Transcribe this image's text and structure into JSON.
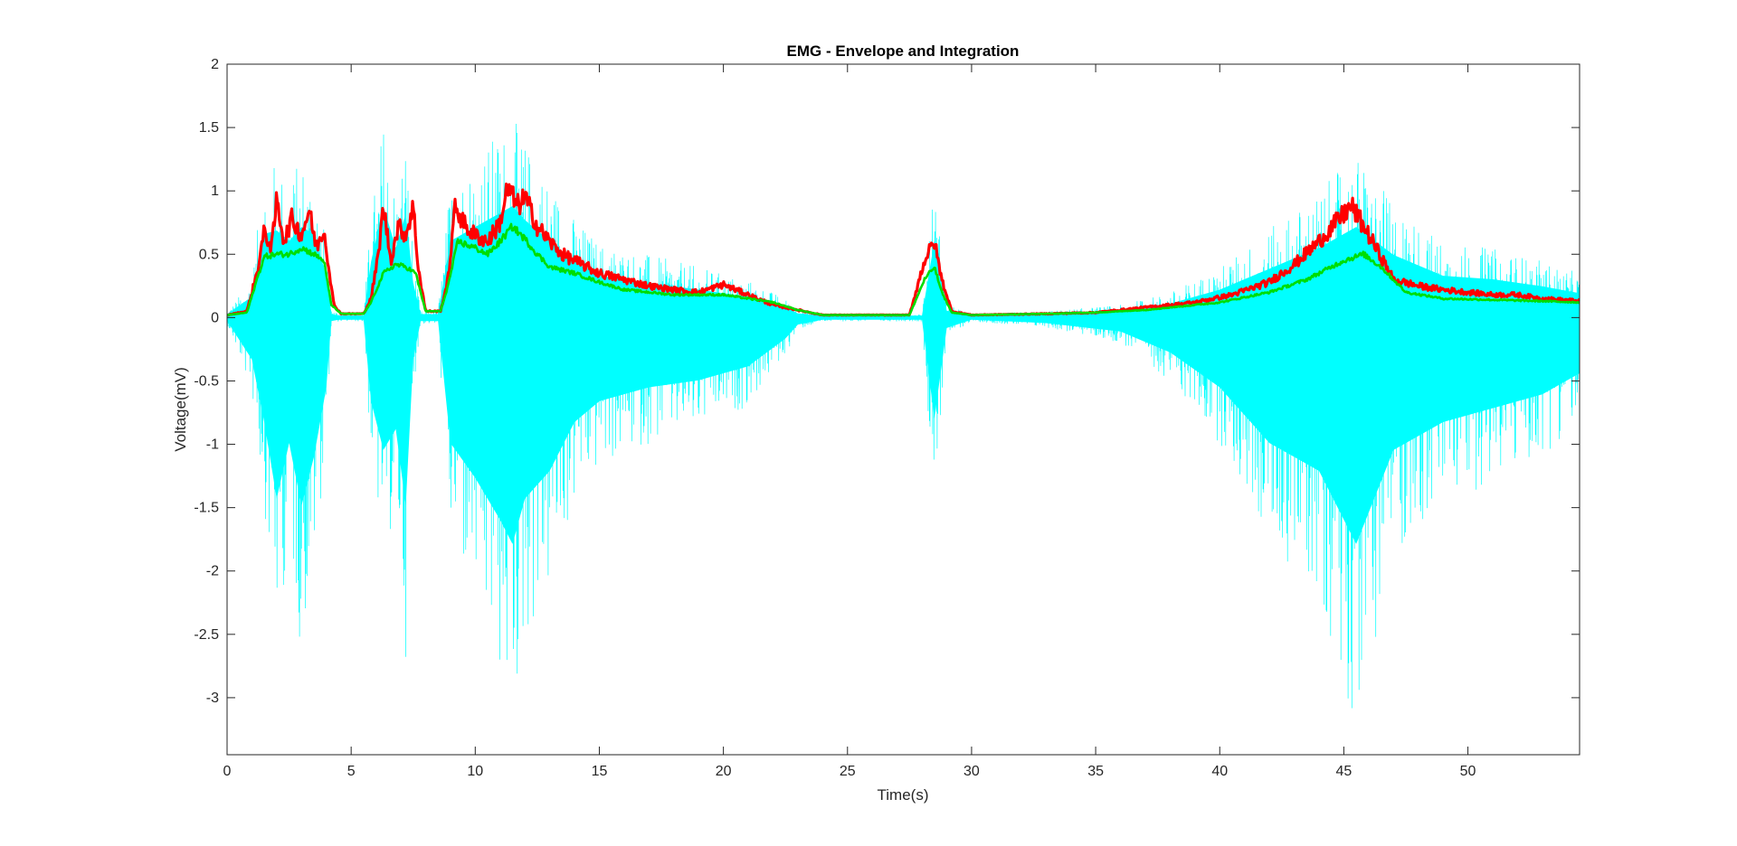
{
  "chart_data": {
    "type": "line",
    "title": "EMG - Envelope and Integration",
    "xlabel": "Time(s)",
    "ylabel": "Voltage(mV)",
    "xlim": [
      0,
      54.5
    ],
    "ylim": [
      -3.45,
      2
    ],
    "xticks": [
      0,
      5,
      10,
      15,
      20,
      25,
      30,
      35,
      40,
      45,
      50
    ],
    "xtick_labels": [
      "0",
      "5",
      "10",
      "15",
      "20",
      "25",
      "30",
      "35",
      "40",
      "45",
      "50"
    ],
    "yticks": [
      2,
      1.5,
      1,
      0.5,
      0,
      -0.5,
      -1,
      -1.5,
      -2,
      -2.5,
      -3
    ],
    "ytick_labels": [
      "2",
      "1.5",
      "1",
      "0.5",
      "0",
      "-0.5",
      "-1",
      "-1.5",
      "-2",
      "-2.5",
      "-3"
    ],
    "grid": false,
    "legend": "none",
    "series": [
      {
        "role": "raw-emg",
        "color": "#00ffff",
        "x": [
          0.0,
          1.0,
          1.5,
          2.0,
          2.5,
          3.0,
          3.5,
          4.0,
          4.2,
          4.5,
          5.5,
          5.8,
          6.3,
          6.8,
          7.2,
          7.5,
          7.8,
          8.5,
          9.0,
          10.0,
          11.0,
          11.5,
          12.0,
          13.0,
          14.0,
          15.0,
          17.0,
          19.0,
          21.0,
          22.5,
          23.0,
          24.0,
          26.0,
          28.0,
          28.5,
          29.0,
          30.0,
          33.0,
          36.0,
          38.0,
          40.0,
          42.0,
          44.0,
          45.5,
          47.0,
          49.0,
          51.0,
          53.0,
          54.5
        ],
        "upper": [
          0.05,
          0.3,
          1.2,
          1.25,
          1.1,
          1.3,
          1.2,
          0.6,
          0.05,
          0.03,
          0.03,
          0.8,
          1.6,
          1.0,
          1.5,
          0.5,
          0.05,
          0.05,
          1.1,
          1.3,
          1.5,
          1.6,
          1.4,
          1.1,
          0.8,
          0.6,
          0.5,
          0.4,
          0.3,
          0.15,
          0.06,
          0.03,
          0.03,
          0.03,
          1.1,
          0.1,
          0.03,
          0.05,
          0.1,
          0.2,
          0.4,
          0.7,
          1.0,
          1.3,
          0.9,
          0.6,
          0.55,
          0.45,
          0.35
        ],
        "lower": [
          -0.05,
          -0.6,
          -1.5,
          -2.6,
          -1.8,
          -2.7,
          -2.0,
          -1.0,
          -0.05,
          -0.03,
          -0.03,
          -1.2,
          -1.9,
          -1.6,
          -2.7,
          -0.6,
          -0.05,
          -0.05,
          -1.8,
          -2.3,
          -2.9,
          -3.25,
          -2.6,
          -2.2,
          -1.5,
          -1.2,
          -1.0,
          -0.9,
          -0.7,
          -0.3,
          -0.1,
          -0.03,
          -0.03,
          -0.03,
          -1.45,
          -0.15,
          -0.03,
          -0.08,
          -0.2,
          -0.5,
          -1.0,
          -1.8,
          -2.2,
          -3.25,
          -1.9,
          -1.5,
          -1.3,
          -1.1,
          -0.8
        ]
      },
      {
        "role": "envelope",
        "color": "#ff0000",
        "x": [
          0.0,
          0.8,
          1.2,
          1.5,
          1.8,
          2.0,
          2.3,
          2.6,
          3.0,
          3.3,
          3.6,
          3.9,
          4.1,
          4.3,
          4.6,
          5.5,
          5.8,
          6.1,
          6.3,
          6.6,
          6.9,
          7.2,
          7.5,
          7.7,
          8.0,
          8.6,
          8.9,
          9.2,
          9.6,
          10.0,
          10.5,
          11.0,
          11.3,
          11.7,
          12.0,
          12.5,
          13.0,
          13.5,
          14.0,
          15.0,
          16.0,
          17.0,
          18.0,
          19.0,
          20.0,
          21.0,
          22.0,
          23.0,
          24.0,
          26.0,
          27.5,
          28.1,
          28.5,
          28.8,
          29.2,
          30.0,
          33.0,
          35.0,
          37.0,
          39.0,
          40.5,
          42.0,
          43.0,
          44.0,
          44.7,
          45.3,
          45.8,
          46.3,
          47.0,
          48.0,
          49.0,
          50.0,
          51.0,
          52.0,
          53.0,
          54.5
        ],
        "y": [
          0.02,
          0.05,
          0.35,
          0.68,
          0.55,
          0.93,
          0.6,
          0.78,
          0.65,
          0.85,
          0.55,
          0.7,
          0.4,
          0.1,
          0.03,
          0.03,
          0.15,
          0.5,
          0.88,
          0.45,
          0.72,
          0.65,
          0.88,
          0.4,
          0.05,
          0.05,
          0.3,
          0.88,
          0.72,
          0.65,
          0.6,
          0.75,
          1.02,
          0.88,
          0.95,
          0.72,
          0.6,
          0.5,
          0.45,
          0.35,
          0.3,
          0.25,
          0.22,
          0.2,
          0.26,
          0.18,
          0.1,
          0.06,
          0.02,
          0.02,
          0.02,
          0.45,
          0.6,
          0.3,
          0.05,
          0.02,
          0.03,
          0.04,
          0.08,
          0.12,
          0.18,
          0.28,
          0.42,
          0.6,
          0.75,
          0.88,
          0.72,
          0.55,
          0.3,
          0.25,
          0.22,
          0.2,
          0.18,
          0.18,
          0.15,
          0.13
        ]
      },
      {
        "role": "integration",
        "color": "#00dd00",
        "x": [
          0.0,
          0.8,
          1.2,
          1.5,
          2.0,
          2.5,
          3.0,
          3.5,
          3.9,
          4.2,
          4.6,
          5.5,
          5.8,
          6.3,
          6.8,
          7.2,
          7.6,
          8.0,
          8.6,
          8.9,
          9.3,
          10.0,
          10.5,
          11.0,
          11.5,
          12.0,
          12.5,
          13.0,
          14.0,
          15.0,
          16.0,
          18.0,
          20.0,
          22.0,
          23.0,
          24.0,
          27.5,
          28.1,
          28.5,
          28.8,
          29.2,
          30.0,
          33.0,
          35.0,
          37.0,
          40.0,
          42.0,
          43.5,
          45.0,
          45.8,
          46.5,
          47.5,
          49.0,
          51.0,
          53.0,
          54.5
        ],
        "y": [
          0.02,
          0.04,
          0.3,
          0.48,
          0.5,
          0.5,
          0.55,
          0.5,
          0.45,
          0.1,
          0.03,
          0.03,
          0.12,
          0.35,
          0.42,
          0.4,
          0.35,
          0.05,
          0.05,
          0.25,
          0.6,
          0.55,
          0.5,
          0.6,
          0.72,
          0.62,
          0.5,
          0.4,
          0.35,
          0.28,
          0.22,
          0.18,
          0.18,
          0.12,
          0.06,
          0.02,
          0.02,
          0.3,
          0.4,
          0.2,
          0.04,
          0.02,
          0.03,
          0.04,
          0.06,
          0.12,
          0.2,
          0.3,
          0.45,
          0.5,
          0.4,
          0.2,
          0.15,
          0.14,
          0.13,
          0.12
        ]
      }
    ]
  }
}
